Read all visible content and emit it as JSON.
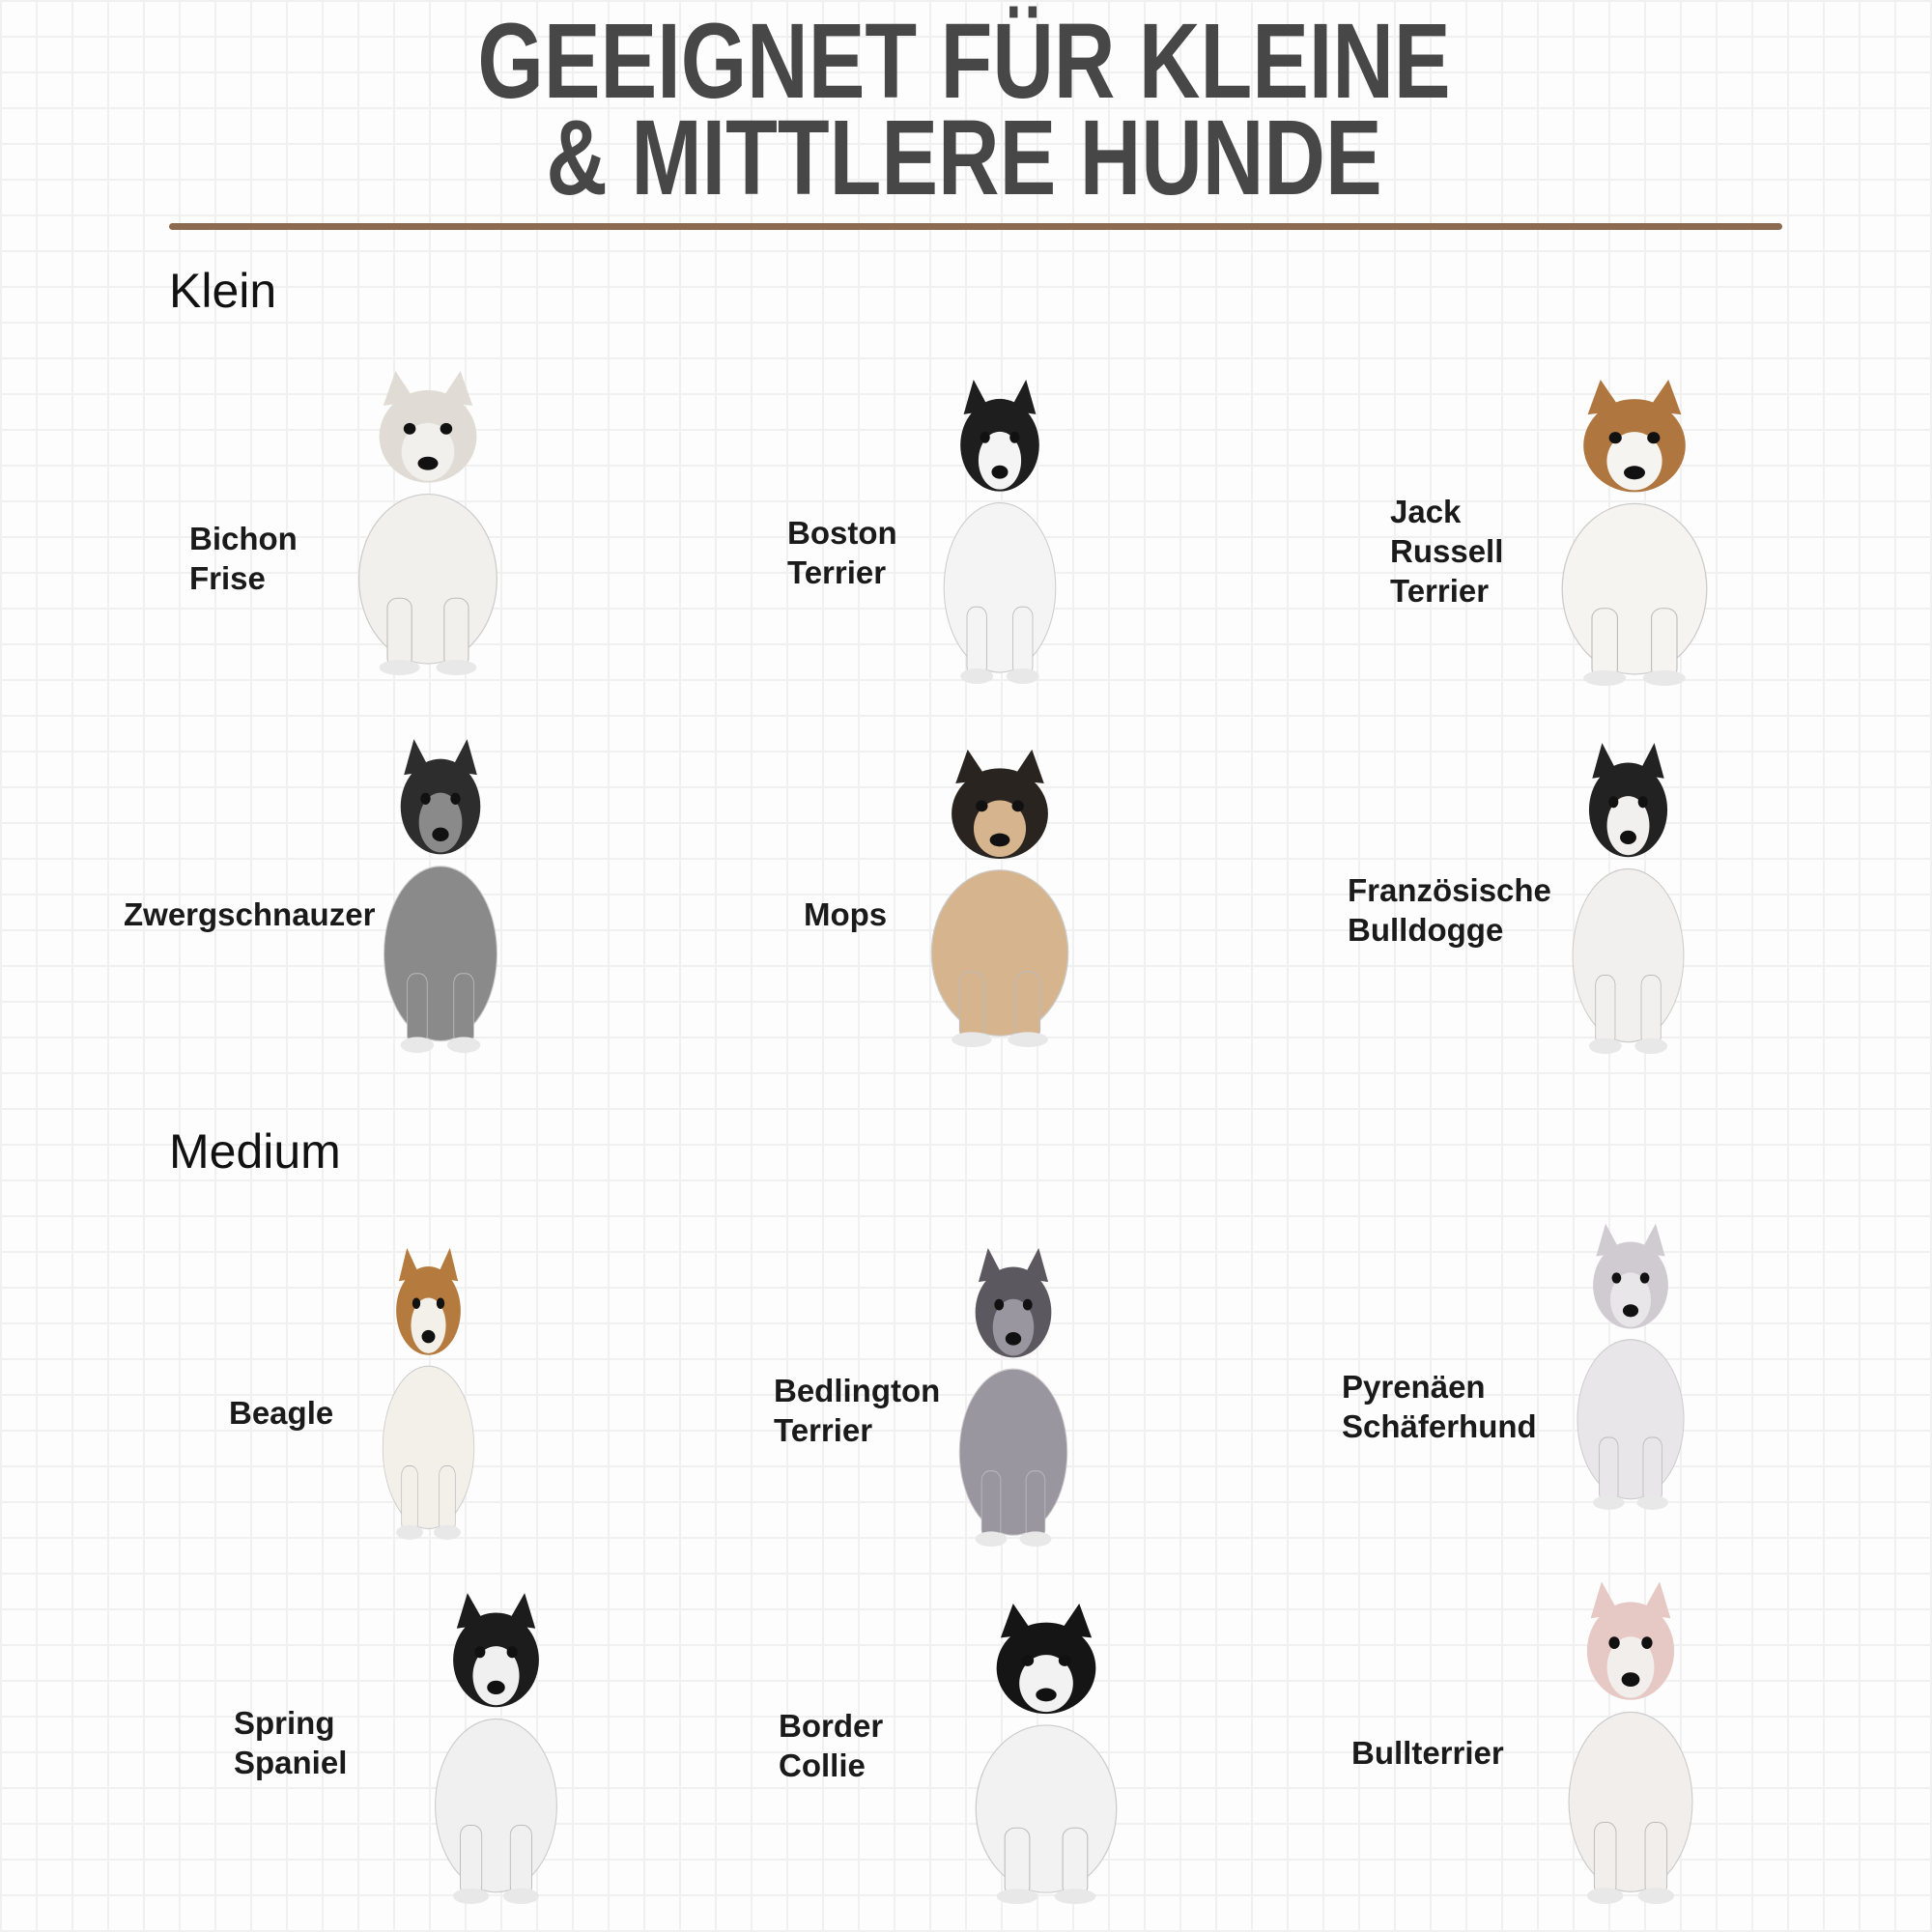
{
  "title": {
    "line1": "GEEIGNET FÜR KLEINE",
    "line2": "& MITTLERE HUNDE"
  },
  "colors": {
    "title": "#474747",
    "rule": "#8c6a4f"
  },
  "sections": [
    {
      "heading": "Klein",
      "dogs": [
        {
          "lines": [
            "Bichon",
            "Frise"
          ],
          "fur": "#f2f0ec",
          "accent": "#e0dcd5"
        },
        {
          "lines": [
            "Boston",
            "Terrier"
          ],
          "fur": "#f4f4f4",
          "accent": "#1e1e1e"
        },
        {
          "lines": [
            "Jack",
            "Russell",
            "Terrier"
          ],
          "fur": "#f6f4f0",
          "accent": "#b07640"
        },
        {
          "lines": [
            "Zwergschnauzer"
          ],
          "fur": "#8a8a8a",
          "accent": "#2d2d2d"
        },
        {
          "lines": [
            "Mops"
          ],
          "fur": "#d6b48e",
          "accent": "#2a2420"
        },
        {
          "lines": [
            "Französische",
            "Bulldogge"
          ],
          "fur": "#f2f0ee",
          "accent": "#222222"
        }
      ]
    },
    {
      "heading": "Medium",
      "dogs": [
        {
          "lines": [
            "Beagle"
          ],
          "fur": "#f3f0ea",
          "accent": "#b57a3e"
        },
        {
          "lines": [
            "Bedlington",
            "Terrier"
          ],
          "fur": "#9a96a0",
          "accent": "#5c5860"
        },
        {
          "lines": [
            "Pyrenäen",
            "Schäferhund"
          ],
          "fur": "#e8e6e8",
          "accent": "#cfcbd0"
        },
        {
          "lines": [
            "Spring",
            "Spaniel"
          ],
          "fur": "#f0f0f0",
          "accent": "#1c1c1c"
        },
        {
          "lines": [
            "Border",
            "Collie"
          ],
          "fur": "#f2f2f2",
          "accent": "#151515"
        },
        {
          "lines": [
            "Bullterrier"
          ],
          "fur": "#f1eeec",
          "accent": "#e6c9c4"
        }
      ]
    }
  ]
}
